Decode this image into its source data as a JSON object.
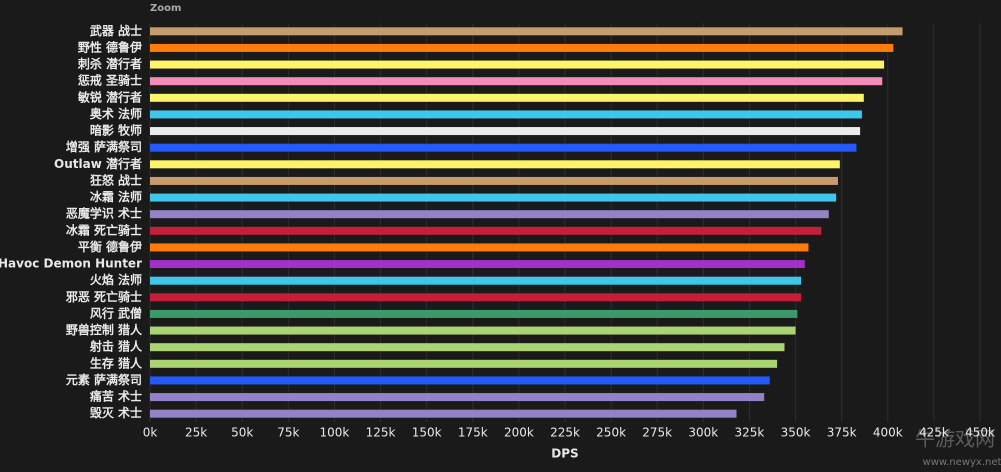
{
  "chart_data": {
    "type": "bar",
    "orientation": "horizontal",
    "zoom_label": "Zoom",
    "xlabel": "DPS",
    "categories": [
      "武器 战士",
      "野性 德鲁伊",
      "刺杀 潜行者",
      "惩戒 圣骑士",
      "敏锐 潜行者",
      "奥术 法师",
      "暗影 牧师",
      "增强 萨满祭司",
      "Outlaw 潜行者",
      "狂怒 战士",
      "冰霜 法师",
      "恶魔学识 术士",
      "冰霜 死亡骑士",
      "平衡 德鲁伊",
      "Havoc Demon Hunter",
      "火焰 法师",
      "邪恶 死亡骑士",
      "风行 武僧",
      "野兽控制 猎人",
      "射击 猎人",
      "生存 猎人",
      "元素 萨满祭司",
      "痛苦 术士",
      "毁灭 术士"
    ],
    "values": [
      408000,
      403000,
      398000,
      397000,
      387000,
      386000,
      385000,
      383000,
      374000,
      373000,
      372000,
      368000,
      364000,
      357000,
      355000,
      353000,
      353000,
      351000,
      350000,
      344000,
      340000,
      336000,
      333000,
      318000
    ],
    "colors": [
      "#c69b6d",
      "#ff7c0a",
      "#fff468",
      "#f48cba",
      "#fff468",
      "#3fc7eb",
      "#ebebeb",
      "#2459ff",
      "#fff468",
      "#c69b6d",
      "#3fc7eb",
      "#9482c9",
      "#c41e3a",
      "#ff7c0a",
      "#a330c9",
      "#3fc7eb",
      "#c41e3a",
      "#3a9a6a",
      "#aad372",
      "#aad372",
      "#aad372",
      "#2459ff",
      "#9482c9",
      "#9482c9"
    ],
    "xlim": [
      0,
      450000
    ],
    "xticks": [
      {
        "value": 0,
        "label": "0k"
      },
      {
        "value": 25000,
        "label": "25k"
      },
      {
        "value": 50000,
        "label": "50k"
      },
      {
        "value": 75000,
        "label": "75k"
      },
      {
        "value": 100000,
        "label": "100k"
      },
      {
        "value": 125000,
        "label": "125k"
      },
      {
        "value": 150000,
        "label": "150k"
      },
      {
        "value": 175000,
        "label": "175k"
      },
      {
        "value": 200000,
        "label": "200k"
      },
      {
        "value": 225000,
        "label": "225k"
      },
      {
        "value": 250000,
        "label": "250k"
      },
      {
        "value": 275000,
        "label": "275k"
      },
      {
        "value": 300000,
        "label": "300k"
      },
      {
        "value": 325000,
        "label": "325k"
      },
      {
        "value": 350000,
        "label": "350k"
      },
      {
        "value": 375000,
        "label": "375k"
      },
      {
        "value": 400000,
        "label": "400k"
      },
      {
        "value": 425000,
        "label": "425k"
      },
      {
        "value": 450000,
        "label": "450k"
      }
    ],
    "grid": true,
    "watermark": "牛游戏网",
    "watermark_url": "www.newyx.net"
  }
}
